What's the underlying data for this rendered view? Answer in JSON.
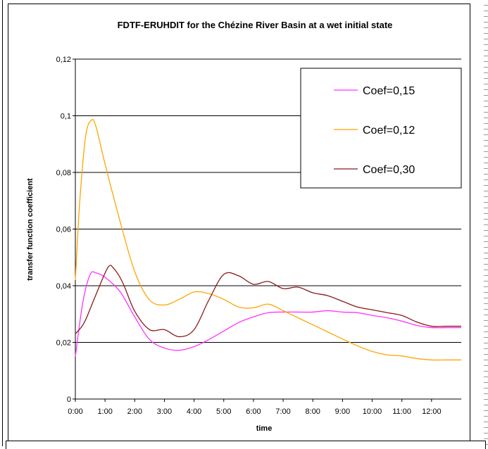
{
  "chart_data": {
    "type": "line",
    "title": "FDTF-ERUHDIT for the Chézine River Basin at a wet initial state",
    "xlabel": "time",
    "ylabel": "transfer function coefficient",
    "xlim": [
      0,
      13
    ],
    "ylim": [
      0,
      0.12
    ],
    "grid": true,
    "legend_position": "top-right",
    "x_tick_labels": [
      "0:00",
      "1:00",
      "2:00",
      "3:00",
      "4:00",
      "5:00",
      "6:00",
      "7:00",
      "8:00",
      "9:00",
      "10:00",
      "11:00",
      "12:00"
    ],
    "y_tick_labels": [
      "0",
      "0,02",
      "0,04",
      "0,06",
      "0,08",
      "0,1",
      "0,12"
    ],
    "y_ticks": [
      0,
      0.02,
      0.04,
      0.06,
      0.08,
      0.1,
      0.12
    ],
    "series": [
      {
        "name": "Coef=0,15",
        "color": "#ff33ff",
        "x": [
          0,
          0.25,
          0.5,
          0.7,
          1.0,
          1.5,
          2.0,
          2.5,
          3.0,
          3.5,
          4.0,
          4.5,
          5.0,
          5.5,
          6.0,
          6.5,
          7.0,
          7.5,
          8.0,
          8.5,
          9.0,
          9.5,
          10.0,
          10.5,
          11.0,
          11.5,
          12.0,
          12.5,
          13.0
        ],
        "y": [
          0.015,
          0.034,
          0.044,
          0.0445,
          0.043,
          0.038,
          0.029,
          0.021,
          0.018,
          0.0172,
          0.0185,
          0.021,
          0.024,
          0.027,
          0.029,
          0.0305,
          0.0307,
          0.0307,
          0.0307,
          0.0312,
          0.0307,
          0.0305,
          0.0295,
          0.0287,
          0.0275,
          0.026,
          0.0252,
          0.0252,
          0.0252
        ]
      },
      {
        "name": "Coef=0,12",
        "color": "#ffa500",
        "x": [
          0,
          0.15,
          0.35,
          0.55,
          0.7,
          1.0,
          1.5,
          2.0,
          2.5,
          3.0,
          3.5,
          4.0,
          4.5,
          5.0,
          5.5,
          6.0,
          6.5,
          7.0,
          7.5,
          8.0,
          8.5,
          9.0,
          9.5,
          10.0,
          10.5,
          11.0,
          11.5,
          12.0,
          12.5,
          13.0
        ],
        "y": [
          0.042,
          0.07,
          0.093,
          0.0985,
          0.096,
          0.083,
          0.063,
          0.045,
          0.035,
          0.0332,
          0.0352,
          0.0378,
          0.0372,
          0.0352,
          0.0325,
          0.0322,
          0.0335,
          0.0312,
          0.0287,
          0.0262,
          0.0237,
          0.0212,
          0.0188,
          0.0168,
          0.0156,
          0.0152,
          0.0143,
          0.0138,
          0.0138,
          0.0138
        ]
      },
      {
        "name": "Coef=0,30",
        "color": "#8b1a1a",
        "x": [
          0,
          0.3,
          0.7,
          1.1,
          1.3,
          1.6,
          2.0,
          2.5,
          3.0,
          3.5,
          4.0,
          4.5,
          5.0,
          5.5,
          6.0,
          6.5,
          7.0,
          7.5,
          8.0,
          8.5,
          9.0,
          9.5,
          10.0,
          10.5,
          11.0,
          11.5,
          12.0,
          12.5,
          13.0
        ],
        "y": [
          0.023,
          0.027,
          0.037,
          0.0465,
          0.046,
          0.041,
          0.031,
          0.0245,
          0.0245,
          0.022,
          0.0245,
          0.035,
          0.044,
          0.0435,
          0.0405,
          0.0415,
          0.039,
          0.0395,
          0.0375,
          0.0365,
          0.0345,
          0.0325,
          0.0315,
          0.0305,
          0.0295,
          0.0272,
          0.0257,
          0.0257,
          0.0257
        ]
      }
    ]
  }
}
